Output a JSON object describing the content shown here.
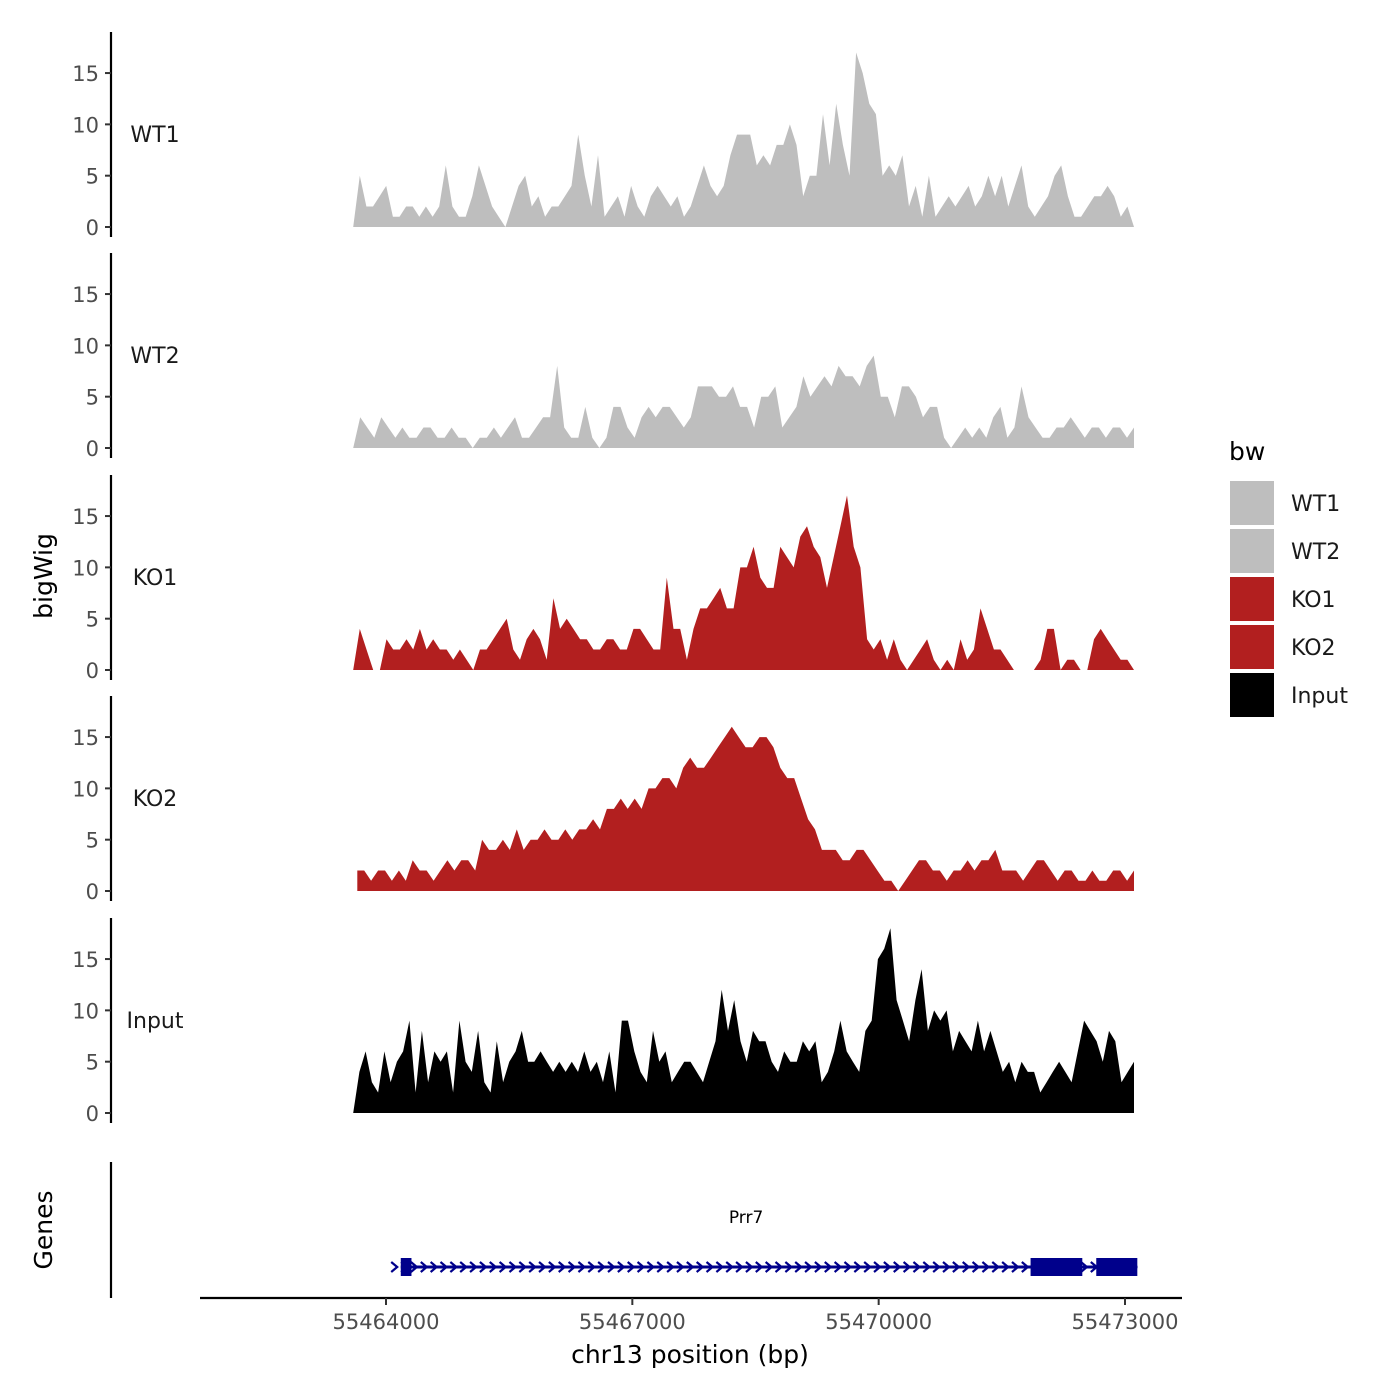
{
  "chart_data": {
    "type": "area",
    "ylabel": "bigWig",
    "genes_label": "Genes",
    "xlabel": "chr13 position (bp)",
    "x_range": [
      55462000,
      55473500
    ],
    "y_range": [
      0,
      19
    ],
    "y_ticks": [
      0,
      5,
      10,
      15
    ],
    "x_ticks": [
      {
        "value": 55464000,
        "label": "55464000"
      },
      {
        "value": 55467000,
        "label": "55467000"
      },
      {
        "value": 55470000,
        "label": "55470000"
      },
      {
        "value": 55473000,
        "label": "55473000"
      }
    ],
    "legend": {
      "title": "bw",
      "entries": [
        {
          "label": "WT1",
          "color": "#bebebe"
        },
        {
          "label": "WT2",
          "color": "#bebebe"
        },
        {
          "label": "KO1",
          "color": "#b21f1f"
        },
        {
          "label": "KO2",
          "color": "#b21f1f"
        },
        {
          "label": "Input",
          "color": "#000000"
        }
      ]
    },
    "tracks": [
      {
        "name": "WT1",
        "color": "#bebebe",
        "x_start": 55463600,
        "x_end": 55473110,
        "values": [
          0,
          5,
          2,
          2,
          3,
          4,
          1,
          1,
          2,
          2,
          1,
          2,
          1,
          2,
          6,
          2,
          1,
          1,
          3,
          6,
          4,
          2,
          1,
          0,
          2,
          4,
          5,
          2,
          3,
          1,
          2,
          2,
          3,
          4,
          9,
          5,
          2,
          7,
          1,
          2,
          3,
          1,
          4,
          2,
          1,
          3,
          4,
          3,
          2,
          3,
          1,
          2,
          4,
          6,
          4,
          3,
          4,
          7,
          9,
          9,
          9,
          6,
          7,
          6,
          8,
          8,
          10,
          8,
          3,
          5,
          5,
          11,
          6,
          12,
          8,
          5,
          17,
          15,
          12,
          11,
          5,
          6,
          5,
          7,
          2,
          4,
          1,
          5,
          1,
          2,
          3,
          2,
          3,
          4,
          2,
          3,
          5,
          3,
          5,
          2,
          4,
          6,
          2,
          1,
          2,
          3,
          5,
          6,
          3,
          1,
          1,
          2,
          3,
          3,
          4,
          3,
          1,
          2,
          0
        ]
      },
      {
        "name": "WT2",
        "color": "#bebebe",
        "x_start": 55463600,
        "x_end": 55473110,
        "values": [
          0,
          3,
          2,
          1,
          3,
          2,
          1,
          2,
          1,
          1,
          2,
          2,
          1,
          1,
          2,
          1,
          1,
          0,
          1,
          1,
          2,
          1,
          2,
          3,
          1,
          1,
          2,
          3,
          3,
          8,
          2,
          1,
          1,
          4,
          1,
          0,
          1,
          4,
          4,
          2,
          1,
          3,
          4,
          3,
          4,
          4,
          3,
          2,
          3,
          6,
          6,
          6,
          5,
          5,
          6,
          4,
          4,
          2,
          5,
          5,
          6,
          2,
          3,
          4,
          7,
          5,
          6,
          7,
          6,
          8,
          7,
          7,
          6,
          8,
          9,
          5,
          5,
          3,
          6,
          6,
          5,
          3,
          4,
          4,
          1,
          0,
          1,
          2,
          1,
          2,
          1,
          3,
          4,
          1,
          2,
          6,
          3,
          2,
          1,
          1,
          2,
          2,
          3,
          2,
          1,
          2,
          2,
          1,
          2,
          2,
          1,
          2
        ]
      },
      {
        "name": "KO1",
        "color": "#b21f1f",
        "x_start": 55463600,
        "x_end": 55473110,
        "values": [
          0,
          4,
          2,
          0,
          0,
          3,
          2,
          2,
          3,
          2,
          4,
          2,
          3,
          2,
          2,
          1,
          2,
          1,
          0,
          2,
          2,
          3,
          4,
          5,
          2,
          1,
          3,
          4,
          3,
          1,
          7,
          4,
          5,
          4,
          3,
          3,
          2,
          2,
          3,
          3,
          2,
          2,
          4,
          4,
          3,
          2,
          2,
          9,
          4,
          4,
          1,
          4,
          6,
          6,
          7,
          8,
          6,
          6,
          10,
          10,
          12,
          9,
          8,
          8,
          12,
          11,
          10,
          13,
          14,
          12,
          11,
          8,
          11,
          14,
          17,
          12,
          10,
          3,
          2,
          3,
          1,
          3,
          1,
          0,
          1,
          2,
          3,
          1,
          0,
          1,
          0,
          3,
          1,
          2,
          6,
          4,
          2,
          2,
          1,
          0,
          0,
          0,
          0,
          1,
          4,
          4,
          0,
          1,
          1,
          0,
          0,
          3,
          4,
          3,
          2,
          1,
          1,
          0
        ]
      },
      {
        "name": "KO2",
        "color": "#b21f1f",
        "x_start": 55463650,
        "x_end": 55473110,
        "values": [
          2,
          2,
          1,
          2,
          2,
          1,
          2,
          1,
          3,
          2,
          2,
          1,
          2,
          3,
          2,
          3,
          3,
          2,
          5,
          4,
          4,
          5,
          4,
          6,
          4,
          5,
          5,
          6,
          5,
          5,
          6,
          5,
          6,
          6,
          7,
          6,
          8,
          8,
          9,
          8,
          9,
          8,
          10,
          10,
          11,
          11,
          10,
          12,
          13,
          12,
          12,
          13,
          14,
          15,
          16,
          15,
          14,
          14,
          15,
          15,
          14,
          12,
          11,
          11,
          9,
          7,
          6,
          4,
          4,
          4,
          3,
          3,
          4,
          4,
          3,
          2,
          1,
          1,
          0,
          1,
          2,
          3,
          3,
          2,
          2,
          1,
          2,
          2,
          3,
          2,
          3,
          3,
          4,
          2,
          2,
          2,
          1,
          2,
          3,
          3,
          2,
          1,
          2,
          2,
          1,
          1,
          2,
          1,
          1,
          2,
          2,
          1,
          2
        ]
      },
      {
        "name": "Input",
        "color": "#000000",
        "x_start": 55463600,
        "x_end": 55473110,
        "values": [
          0,
          4,
          6,
          3,
          2,
          6,
          3,
          5,
          6,
          9,
          2,
          8,
          3,
          6,
          5,
          6,
          2,
          9,
          5,
          4,
          8,
          3,
          2,
          7,
          3,
          5,
          6,
          8,
          5,
          5,
          6,
          5,
          4,
          5,
          4,
          5,
          4,
          6,
          4,
          5,
          3,
          6,
          2,
          9,
          9,
          6,
          4,
          3,
          8,
          5,
          6,
          3,
          4,
          5,
          5,
          4,
          3,
          5,
          7,
          12,
          8,
          11,
          7,
          5,
          8,
          7,
          7,
          5,
          4,
          6,
          5,
          5,
          7,
          6,
          7,
          3,
          4,
          6,
          9,
          6,
          5,
          4,
          8,
          9,
          15,
          16,
          18,
          11,
          9,
          7,
          11,
          14,
          8,
          10,
          9,
          10,
          6,
          8,
          7,
          6,
          9,
          6,
          8,
          6,
          4,
          5,
          3,
          5,
          4,
          4,
          2,
          3,
          4,
          5,
          4,
          3,
          6,
          9,
          8,
          7,
          5,
          8,
          7,
          3,
          4,
          5
        ]
      }
    ],
    "gene": {
      "name": "Prr7",
      "strand": "+",
      "start": 55464180,
      "end": 55473150,
      "exons": [
        [
          55464180,
          55464310
        ],
        [
          55471850,
          55472480
        ],
        [
          55472650,
          55473150
        ]
      ],
      "color": "#00008b"
    }
  }
}
